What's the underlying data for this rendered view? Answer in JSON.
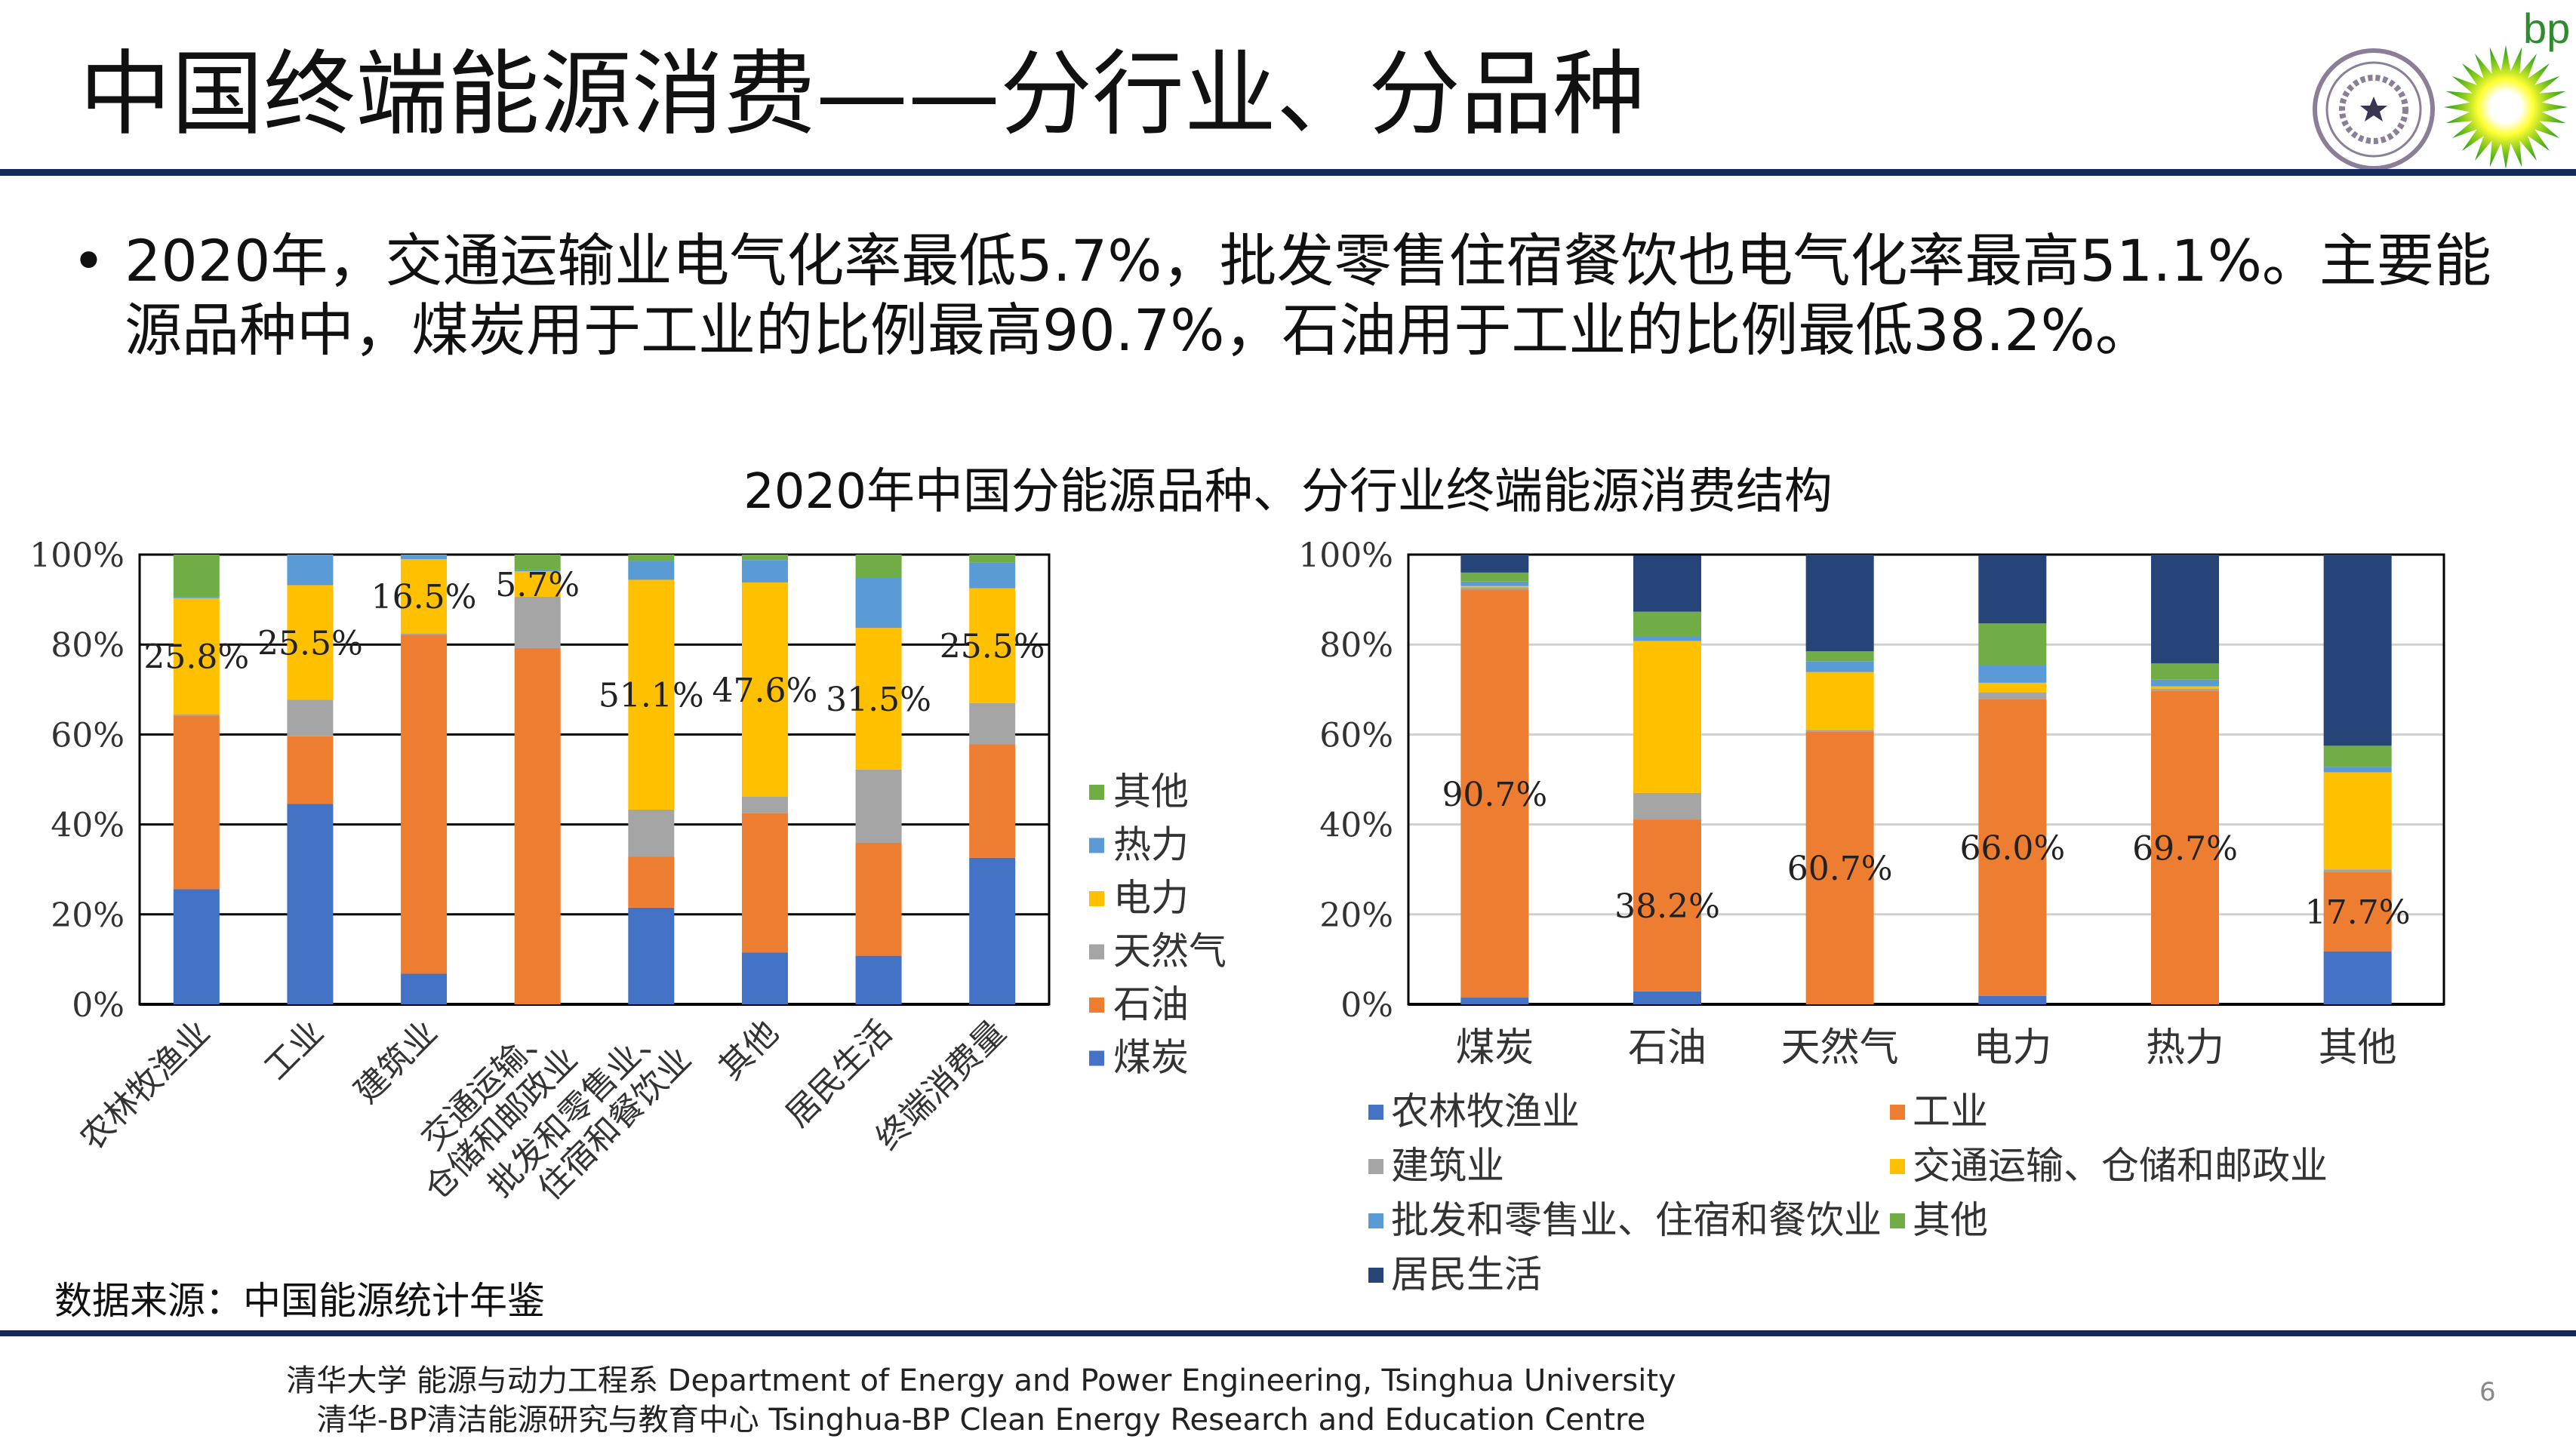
{
  "header": {
    "title": "中国终端能源消费——分行业、分品种",
    "logos": {
      "tsinghua": "tsinghua-seal",
      "bp": "bp-helios",
      "bp_text": "bp"
    }
  },
  "bullet": {
    "text": "2020年，交通运输业电气化率最低5.7%，批发零售住宿餐饮也电气化率最高51.1%。主要能源品种中，煤炭用于工业的比例最高90.7%，石油用于工业的比例最低38.2%。"
  },
  "chart_title": "2020年中国分能源品种、分行业终端能源消费结构",
  "source": "数据来源：中国能源统计年鉴",
  "footer": {
    "line1": "清华大学 能源与动力工程系 Department of Energy and Power Engineering, Tsinghua University",
    "line2": "清华-BP清洁能源研究与教育中心 Tsinghua-BP Clean Energy Research and Education Centre",
    "page": "6"
  },
  "chart_data": [
    {
      "type": "bar",
      "stacked": "percent",
      "categories": [
        "农林牧渔业",
        "工业",
        "建筑业",
        "交通运输、仓储和邮政业",
        "批发和零售业、住宿和餐饮业",
        "其他",
        "居民生活",
        "终端消费量"
      ],
      "yticks": [
        "0%",
        "20%",
        "40%",
        "60%",
        "80%",
        "100%"
      ],
      "ylim": [
        0,
        100
      ],
      "grid": true,
      "legend_position": "right",
      "series": [
        {
          "name": "煤炭",
          "color": "#4472C4",
          "values": [
            25.6,
            44.6,
            6.8,
            0.0,
            21.5,
            11.5,
            10.8,
            32.6
          ]
        },
        {
          "name": "石油",
          "color": "#ED7D31",
          "values": [
            38.6,
            15.0,
            75.4,
            79.2,
            11.3,
            31.0,
            25.1,
            25.2
          ]
        },
        {
          "name": "天然气",
          "color": "#A5A5A5",
          "values": [
            0.3,
            8.1,
            0.3,
            11.4,
            10.5,
            3.7,
            16.3,
            9.2
          ]
        },
        {
          "name": "电力",
          "color": "#FFC000",
          "values": [
            25.8,
            25.5,
            16.5,
            5.7,
            51.1,
            47.6,
            31.5,
            25.5
          ]
        },
        {
          "name": "热力",
          "color": "#5B9BD5",
          "values": [
            0.2,
            6.8,
            1.0,
            0.2,
            4.1,
            5.0,
            11.1,
            5.8
          ]
        },
        {
          "name": "其他",
          "color": "#70AD47",
          "values": [
            9.5,
            0.0,
            0.0,
            3.5,
            1.5,
            1.2,
            5.2,
            1.7
          ]
        }
      ],
      "data_labels": {
        "series": "电力",
        "labels": [
          "25.8%",
          "25.5%",
          "16.5%",
          "5.7%",
          "51.1%",
          "47.6%",
          "31.5%",
          "25.5%"
        ]
      }
    },
    {
      "type": "bar",
      "stacked": "percent",
      "categories": [
        "煤炭",
        "石油",
        "天然气",
        "电力",
        "热力",
        "其他"
      ],
      "yticks": [
        "0%",
        "20%",
        "40%",
        "60%",
        "80%",
        "100%"
      ],
      "ylim": [
        0,
        100
      ],
      "grid": true,
      "legend_position": "bottom",
      "series": [
        {
          "name": "农林牧渔业",
          "color": "#4472C4",
          "values": [
            1.5,
            2.9,
            0.0,
            1.9,
            0.0,
            11.8
          ]
        },
        {
          "name": "工业",
          "color": "#ED7D31",
          "values": [
            90.7,
            38.2,
            60.7,
            66.0,
            69.7,
            17.7
          ]
        },
        {
          "name": "建筑业",
          "color": "#A5A5A5",
          "values": [
            0.5,
            5.9,
            0.3,
            1.5,
            0.5,
            0.5
          ]
        },
        {
          "name": "交通运输、仓储和邮政业",
          "color": "#FFC000",
          "values": [
            0.3,
            33.8,
            12.9,
            2.1,
            0.5,
            21.6
          ]
        },
        {
          "name": "批发和零售业、住宿和餐饮业",
          "color": "#5B9BD5",
          "values": [
            1.0,
            1.0,
            2.4,
            4.0,
            1.5,
            1.2
          ]
        },
        {
          "name": "其他",
          "color": "#70AD47",
          "values": [
            2.0,
            5.5,
            2.2,
            9.2,
            3.6,
            4.7
          ]
        },
        {
          "name": "居民生活",
          "color": "#264478",
          "values": [
            4.0,
            12.5,
            21.5,
            15.2,
            24.2,
            42.5
          ]
        }
      ],
      "data_labels": {
        "series": "工业",
        "labels": [
          "90.7%",
          "38.2%",
          "60.7%",
          "66.0%",
          "69.7%",
          "17.7%"
        ]
      }
    }
  ]
}
